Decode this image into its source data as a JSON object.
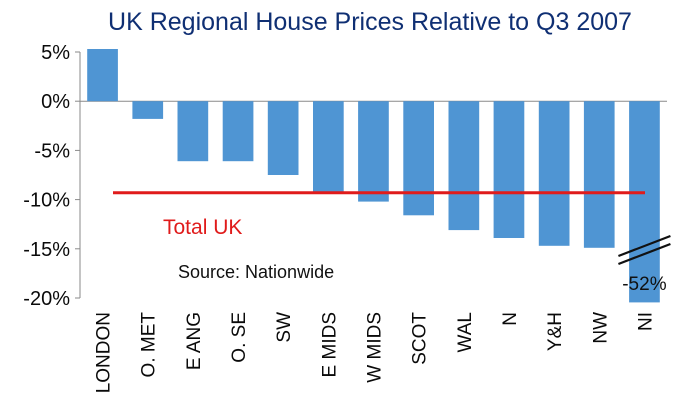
{
  "chart_data": {
    "type": "bar",
    "title": "UK Regional House Prices Relative to Q3 2007",
    "xlabel": "",
    "ylabel": "",
    "categories": [
      "LONDON",
      "O. MET",
      "E ANG",
      "O. SE",
      "SW",
      "E MIDS",
      "W MIDS",
      "SCOT",
      "WAL",
      "N",
      "Y&H",
      "NW",
      "NI"
    ],
    "values": [
      5.3,
      -1.8,
      -6.1,
      -6.1,
      -7.5,
      -9.3,
      -10.2,
      -11.6,
      -13.1,
      -13.9,
      -14.7,
      -14.9,
      -52
    ],
    "ylim": [
      -20,
      5
    ],
    "yticks": [
      5,
      0,
      -5,
      -10,
      -15,
      -20
    ],
    "ytick_labels": [
      "5%",
      "0%",
      "-5%",
      "-10%",
      "-15%",
      "-20%"
    ],
    "grid": false,
    "bar_color": "#4f95d3",
    "axis_break": {
      "category": "NI",
      "label": "-52%"
    },
    "reference_line": {
      "label": "Total UK",
      "value": -9.3,
      "color": "#e01b1b"
    },
    "annotation": "Source: Nationwide"
  }
}
